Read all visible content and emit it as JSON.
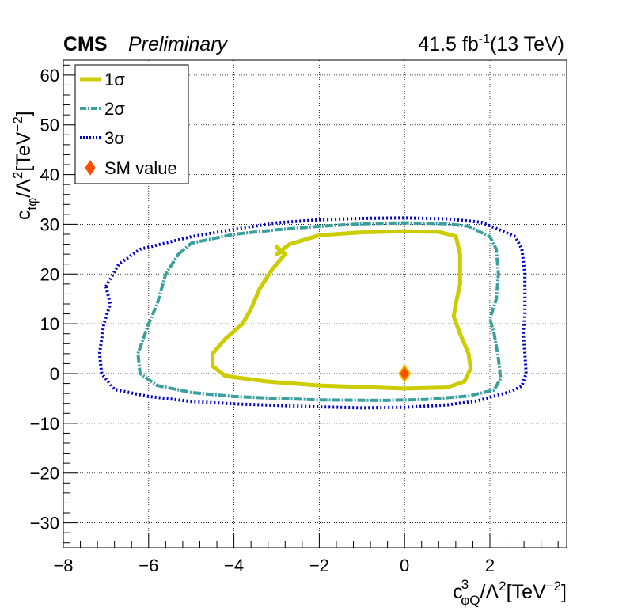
{
  "header": {
    "experiment": "CMS",
    "status": "Preliminary",
    "lumi_value": "41.5 fb",
    "lumi_exp": "-1",
    "energy": "(13 TeV)"
  },
  "chart_data": {
    "type": "contour",
    "xlabel": "c_φQ^3/Λ^2[TeV^-2]",
    "ylabel": "c_tφ/Λ^2[TeV^-2]",
    "xlim": [
      -8,
      3.8
    ],
    "ylim": [
      -35,
      63
    ],
    "xticks": [
      -8,
      -6,
      -4,
      -2,
      0,
      2
    ],
    "yticks": [
      -30,
      -20,
      -10,
      0,
      10,
      20,
      30,
      40,
      50,
      60
    ],
    "xtick_labels": [
      "−8",
      "−6",
      "−4",
      "−2",
      "0",
      "2"
    ],
    "ytick_labels": [
      "−30",
      "−20",
      "−10",
      "0",
      "10",
      "20",
      "30",
      "40",
      "50",
      "60"
    ],
    "grid": true,
    "legend_position": "top-left",
    "legend": [
      {
        "label": "1σ",
        "style": "solid",
        "color": "#cccc00"
      },
      {
        "label": "2σ",
        "style": "dash-dot",
        "color": "#3a9f9f"
      },
      {
        "label": "3σ",
        "style": "dotted",
        "color": "#0000cc"
      },
      {
        "label": "SM value",
        "style": "marker",
        "color": "#ff4d00"
      }
    ],
    "series": [
      {
        "name": "1σ",
        "color": "#cccc00",
        "style": "solid",
        "closed": true,
        "points": [
          [
            -3.0,
            24
          ],
          [
            -2.7,
            26
          ],
          [
            -2.0,
            27.8
          ],
          [
            -1.0,
            28.4
          ],
          [
            0,
            28.6
          ],
          [
            0.8,
            28.5
          ],
          [
            1.2,
            27.6
          ],
          [
            1.3,
            24
          ],
          [
            1.3,
            18
          ],
          [
            1.2,
            14
          ],
          [
            1.15,
            11.5
          ],
          [
            1.3,
            8
          ],
          [
            1.5,
            4
          ],
          [
            1.55,
            1
          ],
          [
            1.4,
            -1.6
          ],
          [
            1.0,
            -2.8
          ],
          [
            0,
            -3.0
          ],
          [
            -2.0,
            -2.4
          ],
          [
            -3.2,
            -1.6
          ],
          [
            -4.2,
            -0.5
          ],
          [
            -4.5,
            1.5
          ],
          [
            -4.5,
            4
          ],
          [
            -4.2,
            7
          ],
          [
            -3.8,
            10
          ],
          [
            -3.6,
            13
          ],
          [
            -3.4,
            17
          ],
          [
            -3.1,
            21
          ],
          [
            -2.8,
            24
          ],
          [
            -3.0,
            25.5
          ],
          [
            -2.9,
            24.4
          ],
          [
            -3.0,
            24
          ]
        ]
      },
      {
        "name": "2σ",
        "color": "#3a9f9f",
        "style": "dash-dot",
        "closed": true,
        "points": [
          [
            -5.3,
            24
          ],
          [
            -5.0,
            26.2
          ],
          [
            -4.0,
            28
          ],
          [
            -3.0,
            28.9
          ],
          [
            -2.0,
            29.6
          ],
          [
            -1.0,
            30.1
          ],
          [
            0,
            30.3
          ],
          [
            1.0,
            30.1
          ],
          [
            1.5,
            29.6
          ],
          [
            2.0,
            27.5
          ],
          [
            2.15,
            25
          ],
          [
            2.2,
            20
          ],
          [
            2.15,
            15
          ],
          [
            2.0,
            11
          ],
          [
            2.1,
            8
          ],
          [
            2.2,
            3
          ],
          [
            2.25,
            -1
          ],
          [
            2.1,
            -3.3
          ],
          [
            1.5,
            -4.5
          ],
          [
            0.5,
            -5.2
          ],
          [
            -0.5,
            -5.4
          ],
          [
            -2.0,
            -5.3
          ],
          [
            -3.0,
            -5
          ],
          [
            -4.0,
            -4.6
          ],
          [
            -5.0,
            -3.8
          ],
          [
            -5.8,
            -2.4
          ],
          [
            -6.2,
            0
          ],
          [
            -6.25,
            4
          ],
          [
            -6.0,
            10
          ],
          [
            -5.8,
            14
          ],
          [
            -5.6,
            20
          ],
          [
            -5.3,
            24
          ]
        ]
      },
      {
        "name": "3σ",
        "color": "#0000cc",
        "style": "dotted",
        "closed": true,
        "points": [
          [
            -7.0,
            17.5
          ],
          [
            -6.7,
            22
          ],
          [
            -6.2,
            25
          ],
          [
            -5.0,
            27.5
          ],
          [
            -4.0,
            29
          ],
          [
            -3.0,
            30.3
          ],
          [
            -2.0,
            30.9
          ],
          [
            -1.0,
            31.2
          ],
          [
            0,
            31.3
          ],
          [
            1.0,
            31.1
          ],
          [
            1.8,
            30.4
          ],
          [
            2.2,
            29
          ],
          [
            2.6,
            27.5
          ],
          [
            2.75,
            25
          ],
          [
            2.82,
            20
          ],
          [
            2.82,
            12
          ],
          [
            2.78,
            8
          ],
          [
            2.82,
            4
          ],
          [
            2.85,
            0
          ],
          [
            2.75,
            -2.5
          ],
          [
            2.5,
            -3.6
          ],
          [
            1.7,
            -5.5
          ],
          [
            1.0,
            -6.3
          ],
          [
            0,
            -6.8
          ],
          [
            -1.0,
            -6.9
          ],
          [
            -2.0,
            -6.7
          ],
          [
            -3.0,
            -6.4
          ],
          [
            -4.0,
            -6.1
          ],
          [
            -5.0,
            -5.6
          ],
          [
            -6.0,
            -4.6
          ],
          [
            -6.8,
            -3.2
          ],
          [
            -7.1,
            0
          ],
          [
            -7.15,
            4
          ],
          [
            -7.05,
            10
          ],
          [
            -6.9,
            14
          ],
          [
            -7.0,
            17.5
          ]
        ]
      }
    ],
    "markers": [
      {
        "name": "SM value",
        "x": 0,
        "y": 0,
        "color": "#ff4d00",
        "edge": "#e8c000"
      }
    ]
  }
}
